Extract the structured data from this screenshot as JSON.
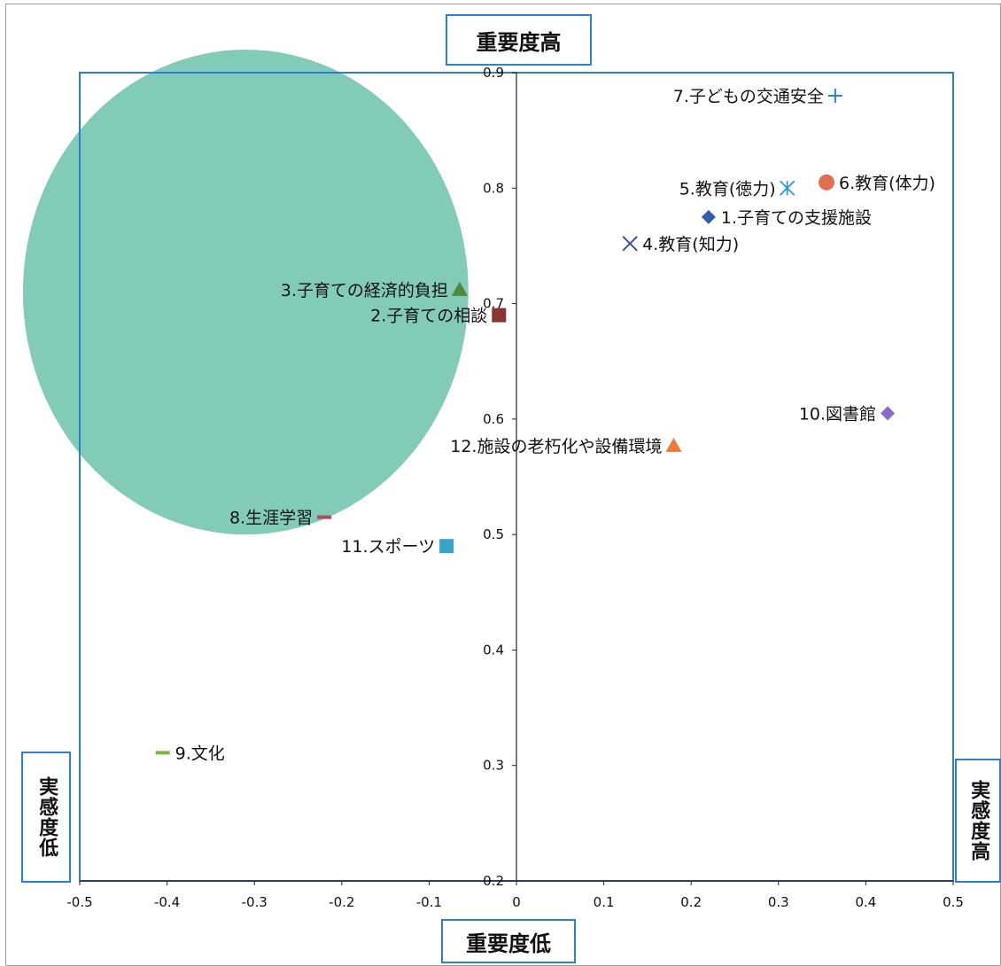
{
  "labels": {
    "top": "重要度高",
    "bottom": "重要度低",
    "left": "実感度低",
    "right": "実感度高"
  },
  "chart_data": {
    "type": "scatter",
    "title": "",
    "xlabel": "",
    "ylabel": "",
    "xlim": [
      -0.5,
      0.5
    ],
    "ylim": [
      0.2,
      0.9
    ],
    "x_ticks": [
      "-0.5",
      "-0.4",
      "-0.3",
      "-0.2",
      "-0.1",
      "0",
      "0.1",
      "0.2",
      "0.3",
      "0.4",
      "0.5"
    ],
    "y_ticks": [
      "0.2",
      "0.3",
      "0.4",
      "0.5",
      "0.6",
      "0.7",
      "0.8",
      "0.9"
    ],
    "grid": false,
    "highlight_circle": {
      "cx": -0.31,
      "cy": 0.71,
      "rx": 0.255,
      "ry": 0.21,
      "color": "#5dbda4"
    },
    "points": [
      {
        "label": "1.子育ての支援施設",
        "x": 0.22,
        "y": 0.775,
        "marker": "diamond",
        "color": "#2f5fa8",
        "label_side": "right"
      },
      {
        "label": "2.子育ての相談",
        "x": -0.02,
        "y": 0.69,
        "marker": "square",
        "color": "#8b3434",
        "label_side": "left"
      },
      {
        "label": "3.子育ての経済的負担",
        "x": -0.065,
        "y": 0.712,
        "marker": "triangle",
        "color": "#4a8a3a",
        "label_side": "left"
      },
      {
        "label": "4.教育(知力)",
        "x": 0.13,
        "y": 0.752,
        "marker": "x",
        "color": "#3a4a9a",
        "label_side": "right"
      },
      {
        "label": "5.教育(徳力)",
        "x": 0.31,
        "y": 0.8,
        "marker": "asterisk",
        "color": "#2e9ad1",
        "label_side": "left"
      },
      {
        "label": "6.教育(体力)",
        "x": 0.355,
        "y": 0.805,
        "marker": "circle",
        "color": "#e07050",
        "label_side": "right"
      },
      {
        "label": "7.子どもの交通安全",
        "x": 0.365,
        "y": 0.88,
        "marker": "plus",
        "color": "#2b7fd4",
        "label_side": "left"
      },
      {
        "label": "8.生涯学習",
        "x": -0.22,
        "y": 0.515,
        "marker": "dash",
        "color": "#b04a55",
        "label_side": "left"
      },
      {
        "label": "9.文化",
        "x": -0.405,
        "y": 0.311,
        "marker": "dash",
        "color": "#7ab83a",
        "label_side": "right"
      },
      {
        "label": "10.図書館",
        "x": 0.425,
        "y": 0.605,
        "marker": "diamond",
        "color": "#8a6ac8",
        "label_side": "left"
      },
      {
        "label": "11.スポーツ",
        "x": -0.08,
        "y": 0.49,
        "marker": "square",
        "color": "#3aa4c8",
        "label_side": "left"
      },
      {
        "label": "12.施設の老朽化や設備環境",
        "x": 0.18,
        "y": 0.577,
        "marker": "triangle",
        "color": "#f07a3a",
        "label_side": "left"
      }
    ]
  }
}
